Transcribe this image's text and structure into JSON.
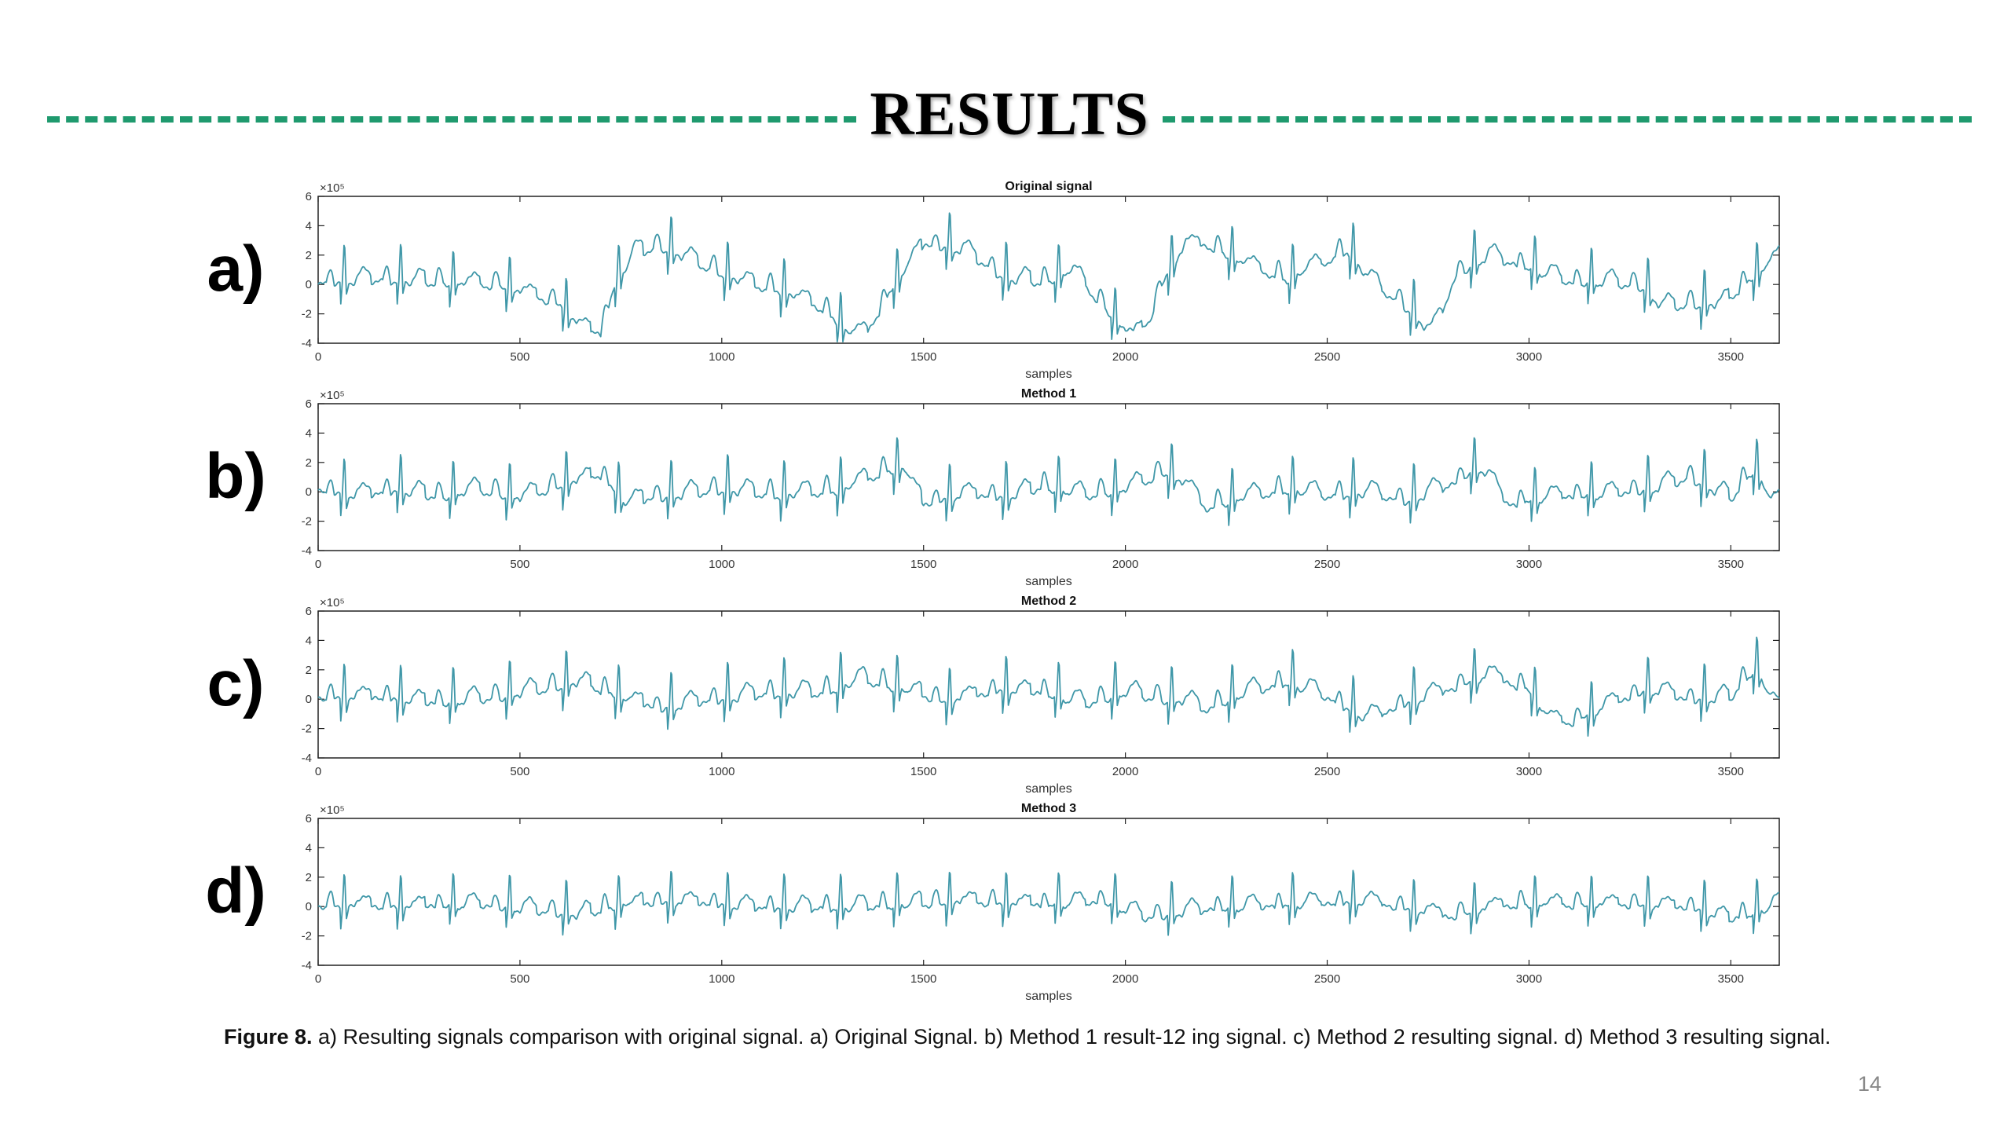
{
  "slide": {
    "title": "RESULTS",
    "caption_label": "Figure 8.",
    "caption_text": " a) Resulting signals comparison with original signal. a) Original Signal. b) Method 1 result-12 ing signal. c) Method 2 resulting signal. d) Method 3 resulting signal.",
    "page_number": "14",
    "accent_color": "#1f9a6e",
    "line_color": "#3f97a8"
  },
  "chart_data": [
    {
      "type": "line",
      "panel_label": "a)",
      "title": "Original signal",
      "xlabel": "samples",
      "ylabel": "",
      "y_multiplier": "×10⁵",
      "xlim": [
        0,
        3620
      ],
      "ylim": [
        -4,
        6
      ],
      "xticks": [
        0,
        500,
        1000,
        1500,
        2000,
        2500,
        3000,
        3500
      ],
      "yticks": [
        -4,
        -2,
        0,
        2,
        4,
        6
      ],
      "grid": false,
      "baseline": [
        [
          0,
          0
        ],
        [
          150,
          0.2
        ],
        [
          300,
          0
        ],
        [
          450,
          -0.2
        ],
        [
          530,
          -0.9
        ],
        [
          600,
          -1.5
        ],
        [
          650,
          -3
        ],
        [
          700,
          -3.5
        ],
        [
          730,
          -0.5
        ],
        [
          780,
          2
        ],
        [
          850,
          2.4
        ],
        [
          950,
          1.2
        ],
        [
          1050,
          0
        ],
        [
          1150,
          -0.6
        ],
        [
          1250,
          -1.8
        ],
        [
          1320,
          -3.5
        ],
        [
          1360,
          -3.4
        ],
        [
          1430,
          0
        ],
        [
          1500,
          2.6
        ],
        [
          1600,
          2.2
        ],
        [
          1700,
          0.3
        ],
        [
          1800,
          0
        ],
        [
          1870,
          0.8
        ],
        [
          1950,
          -1.8
        ],
        [
          2020,
          -3.8
        ],
        [
          2060,
          -2.5
        ],
        [
          2100,
          0.5
        ],
        [
          2150,
          2.5
        ],
        [
          2200,
          2.6
        ],
        [
          2300,
          1.2
        ],
        [
          2400,
          0.2
        ],
        [
          2480,
          1.2
        ],
        [
          2550,
          2.2
        ],
        [
          2600,
          0.3
        ],
        [
          2700,
          -1.8
        ],
        [
          2760,
          -3.5
        ],
        [
          2820,
          0.5
        ],
        [
          2900,
          1.8
        ],
        [
          3000,
          1
        ],
        [
          3100,
          0
        ],
        [
          3200,
          0
        ],
        [
          3280,
          -0.3
        ],
        [
          3330,
          -1.7
        ],
        [
          3400,
          -1.5
        ],
        [
          3480,
          -1.5
        ],
        [
          3560,
          0.5
        ],
        [
          3620,
          1.8
        ]
      ],
      "beats": [
        60,
        200,
        330,
        470,
        610,
        740,
        870,
        1010,
        1150,
        1290,
        1430,
        1560,
        1700,
        1830,
        1970,
        2110,
        2260,
        2410,
        2560,
        2710,
        2860,
        3010,
        3150,
        3290,
        3430,
        3560
      ],
      "beat_amplitude": 3.0
    },
    {
      "type": "line",
      "panel_label": "b)",
      "title": "Method 1",
      "xlabel": "samples",
      "ylabel": "",
      "y_multiplier": "×10⁵",
      "xlim": [
        0,
        3620
      ],
      "ylim": [
        -4,
        6
      ],
      "xticks": [
        0,
        500,
        1000,
        1500,
        2000,
        2500,
        3000,
        3500
      ],
      "yticks": [
        -4,
        -2,
        0,
        2,
        4,
        6
      ],
      "grid": false,
      "baseline": [
        [
          0,
          0
        ],
        [
          100,
          -0.4
        ],
        [
          200,
          0
        ],
        [
          300,
          -0.5
        ],
        [
          400,
          0
        ],
        [
          500,
          -0.6
        ],
        [
          600,
          0.3
        ],
        [
          700,
          1
        ],
        [
          760,
          -0.8
        ],
        [
          850,
          -0.5
        ],
        [
          1000,
          0
        ],
        [
          1150,
          -0.4
        ],
        [
          1300,
          0
        ],
        [
          1400,
          1.2
        ],
        [
          1450,
          1.5
        ],
        [
          1500,
          -1
        ],
        [
          1600,
          -0.3
        ],
        [
          1700,
          -0.5
        ],
        [
          1800,
          0.2
        ],
        [
          1900,
          -0.4
        ],
        [
          2000,
          0
        ],
        [
          2100,
          1.2
        ],
        [
          2150,
          0.3
        ],
        [
          2200,
          -1.2
        ],
        [
          2300,
          -0.5
        ],
        [
          2400,
          0
        ],
        [
          2500,
          -0.4
        ],
        [
          2600,
          -0.2
        ],
        [
          2700,
          -0.8
        ],
        [
          2800,
          0.3
        ],
        [
          2880,
          1.5
        ],
        [
          2950,
          -1
        ],
        [
          3050,
          -0.5
        ],
        [
          3200,
          -0.3
        ],
        [
          3300,
          0
        ],
        [
          3400,
          0.8
        ],
        [
          3500,
          -0.6
        ],
        [
          3560,
          1.5
        ],
        [
          3600,
          -0.8
        ]
      ],
      "beats": [
        60,
        200,
        330,
        470,
        610,
        740,
        870,
        1010,
        1150,
        1290,
        1430,
        1560,
        1700,
        1830,
        1970,
        2110,
        2260,
        2410,
        2560,
        2710,
        2860,
        3010,
        3150,
        3290,
        3430,
        3560
      ],
      "beat_amplitude": 3.0
    },
    {
      "type": "line",
      "panel_label": "c)",
      "title": "Method 2",
      "xlabel": "samples",
      "ylabel": "",
      "y_multiplier": "×10⁵",
      "xlim": [
        0,
        3620
      ],
      "ylim": [
        -4,
        6
      ],
      "xticks": [
        0,
        500,
        1000,
        1500,
        2000,
        2500,
        3000,
        3500
      ],
      "yticks": [
        -4,
        -2,
        0,
        2,
        4,
        6
      ],
      "grid": false,
      "baseline": [
        [
          0,
          0
        ],
        [
          150,
          0
        ],
        [
          300,
          -0.4
        ],
        [
          450,
          0
        ],
        [
          550,
          0.5
        ],
        [
          650,
          1
        ],
        [
          750,
          0
        ],
        [
          850,
          -0.8
        ],
        [
          950,
          -0.3
        ],
        [
          1100,
          0.2
        ],
        [
          1250,
          0.3
        ],
        [
          1350,
          1.2
        ],
        [
          1450,
          0.5
        ],
        [
          1550,
          -0.3
        ],
        [
          1700,
          0.5
        ],
        [
          1800,
          0.3
        ],
        [
          1900,
          -0.5
        ],
        [
          2000,
          0.3
        ],
        [
          2100,
          -0.2
        ],
        [
          2150,
          -0.3
        ],
        [
          2200,
          -0.8
        ],
        [
          2300,
          0.3
        ],
        [
          2400,
          1
        ],
        [
          2500,
          0
        ],
        [
          2600,
          -1.5
        ],
        [
          2700,
          -0.4
        ],
        [
          2800,
          0.5
        ],
        [
          2900,
          1.5
        ],
        [
          3000,
          0.5
        ],
        [
          3050,
          -1.5
        ],
        [
          3100,
          -1.8
        ],
        [
          3200,
          -0.5
        ],
        [
          3300,
          0.5
        ],
        [
          3400,
          -0.2
        ],
        [
          3500,
          0
        ],
        [
          3560,
          2
        ],
        [
          3620,
          -1
        ]
      ],
      "beats": [
        60,
        200,
        330,
        470,
        610,
        740,
        870,
        1010,
        1150,
        1290,
        1430,
        1560,
        1700,
        1830,
        1970,
        2110,
        2260,
        2410,
        2560,
        2710,
        2860,
        3010,
        3150,
        3290,
        3430,
        3560
      ],
      "beat_amplitude": 3.0
    },
    {
      "type": "line",
      "panel_label": "d)",
      "title": "Method 3",
      "xlabel": "samples",
      "ylabel": "",
      "y_multiplier": "×10⁵",
      "xlim": [
        0,
        3620
      ],
      "ylim": [
        -4,
        6
      ],
      "xticks": [
        0,
        500,
        1000,
        1500,
        2000,
        2500,
        3000,
        3500
      ],
      "yticks": [
        -4,
        -2,
        0,
        2,
        4,
        6
      ],
      "grid": false,
      "baseline": [
        [
          0,
          0
        ],
        [
          200,
          -0.1
        ],
        [
          400,
          0
        ],
        [
          650,
          -0.7
        ],
        [
          750,
          0
        ],
        [
          900,
          0.2
        ],
        [
          1100,
          -0.2
        ],
        [
          1300,
          -0.2
        ],
        [
          1450,
          0
        ],
        [
          1600,
          0.2
        ],
        [
          1800,
          0
        ],
        [
          1950,
          0.2
        ],
        [
          2050,
          -0.9
        ],
        [
          2200,
          -0.3
        ],
        [
          2400,
          0
        ],
        [
          2600,
          0.2
        ],
        [
          2800,
          -0.8
        ],
        [
          2950,
          0
        ],
        [
          3100,
          0
        ],
        [
          3250,
          0
        ],
        [
          3400,
          -0.2
        ],
        [
          3500,
          -1
        ],
        [
          3620,
          0
        ]
      ],
      "beats": [
        60,
        200,
        330,
        470,
        610,
        740,
        870,
        1010,
        1150,
        1290,
        1430,
        1560,
        1700,
        1830,
        1970,
        2110,
        2260,
        2410,
        2560,
        2710,
        2860,
        3010,
        3150,
        3290,
        3430,
        3560
      ],
      "beat_amplitude": 2.8
    }
  ]
}
